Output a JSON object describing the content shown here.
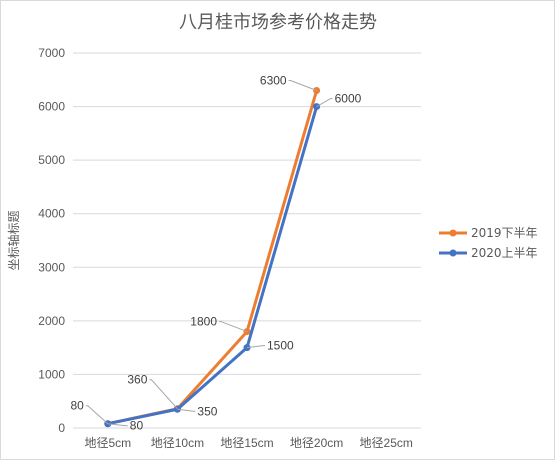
{
  "chart_data": {
    "type": "line",
    "title": "八月桂市场参考价格走势",
    "xlabel": "",
    "ylabel": "坐标轴标题",
    "categories": [
      "地径5cm",
      "地径10cm",
      "地径15cm",
      "地径20cm",
      "地径25cm"
    ],
    "ylim": [
      0,
      7000
    ],
    "yticks": [
      0,
      1000,
      2000,
      3000,
      4000,
      5000,
      6000,
      7000
    ],
    "grid": true,
    "legend_position": "right",
    "series": [
      {
        "name": "2019下半年",
        "color": "#ED7D31",
        "values": [
          80,
          360,
          1800,
          6300,
          null
        ]
      },
      {
        "name": "2020上半年",
        "color": "#4472C4",
        "values": [
          80,
          350,
          1500,
          6000,
          null
        ]
      }
    ]
  }
}
